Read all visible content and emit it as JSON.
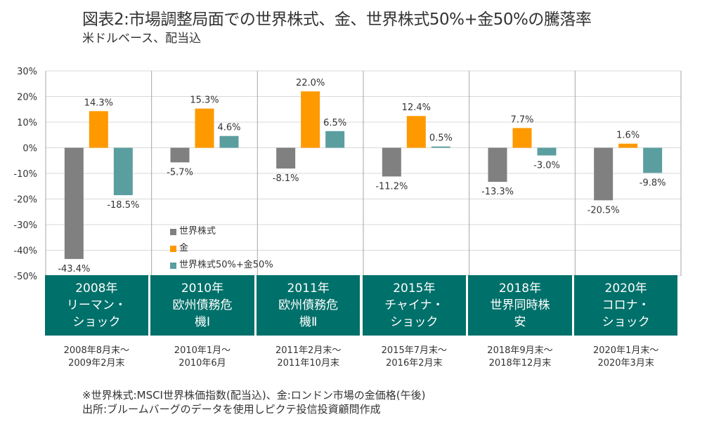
{
  "header": {
    "title": "図表2:市場調整局面での世界株式、金、世界株式50%+金50%の騰落率",
    "subtitle": "米ドルベース、配当込"
  },
  "chart_data": {
    "type": "bar",
    "title": "図表2:市場調整局面での世界株式、金、世界株式50%+金50%の騰落率",
    "subtitle": "米ドルベース、配当込",
    "xlabel": "",
    "ylabel": "",
    "ylim": [
      -50,
      30
    ],
    "yticks": [
      30,
      20,
      10,
      0,
      -10,
      -20,
      -30,
      -40,
      -50
    ],
    "ytick_labels": [
      "30%",
      "20%",
      "10%",
      "0%",
      "-10%",
      "-20%",
      "-30%",
      "-40%",
      "-50%"
    ],
    "grid": true,
    "legend_position": "bottom-left inside",
    "categories": [
      {
        "year": "2008年",
        "name_lines": [
          "リーマン・",
          "ショック"
        ],
        "period_lines": [
          "2008年8月末～",
          "2009年2月末"
        ]
      },
      {
        "year": "2010年",
        "name_lines": [
          "欧州債務危",
          "機Ⅰ"
        ],
        "period_lines": [
          "2010年1月～",
          "2010年6月"
        ]
      },
      {
        "year": "2011年",
        "name_lines": [
          "欧州債務危",
          "機Ⅱ"
        ],
        "period_lines": [
          "2011年2月末～",
          "2011年10月末"
        ]
      },
      {
        "year": "2015年",
        "name_lines": [
          "チャイナ・",
          "ショック"
        ],
        "period_lines": [
          "2015年7月末～",
          "2016年2月末"
        ]
      },
      {
        "year": "2018年",
        "name_lines": [
          "世界同時株",
          "安"
        ],
        "period_lines": [
          "2018年9月末～",
          "2018年12月末"
        ]
      },
      {
        "year": "2020年",
        "name_lines": [
          "コロナ・",
          "ショック"
        ],
        "period_lines": [
          "2020年1月末～",
          "2020年3月末"
        ]
      }
    ],
    "series": [
      {
        "name": "世界株式",
        "color": "#808080",
        "values": [
          -43.4,
          -5.7,
          -8.1,
          -11.2,
          -13.3,
          -20.5
        ],
        "labels": [
          "-43.4%",
          "-5.7%",
          "-8.1%",
          "-11.2%",
          "-13.3%",
          "-20.5%"
        ]
      },
      {
        "name": "金",
        "color": "#ff9900",
        "values": [
          14.3,
          15.3,
          22.0,
          12.4,
          7.7,
          1.6
        ],
        "labels": [
          "14.3%",
          "15.3%",
          "22.0%",
          "12.4%",
          "7.7%",
          "1.6%"
        ]
      },
      {
        "name": "世界株式50%+金50%",
        "color": "#5b9ea0",
        "values": [
          -18.5,
          4.6,
          6.5,
          0.5,
          -3.0,
          -9.8
        ],
        "labels": [
          "-18.5%",
          "4.6%",
          "6.5%",
          "0.5%",
          "-3.0%",
          "-9.8%"
        ]
      }
    ]
  },
  "notes": {
    "line1": "※世界株式:MSCI世界株価指数(配当込)、金:ロンドン市場の金価格(午後)",
    "line2": "出所:ブルームバーグのデータを使用しピクテ投信投資顧問作成"
  },
  "colors": {
    "category_box": "#00706a",
    "grid": "#d9d9d9",
    "divider": "#a6a6a6"
  }
}
